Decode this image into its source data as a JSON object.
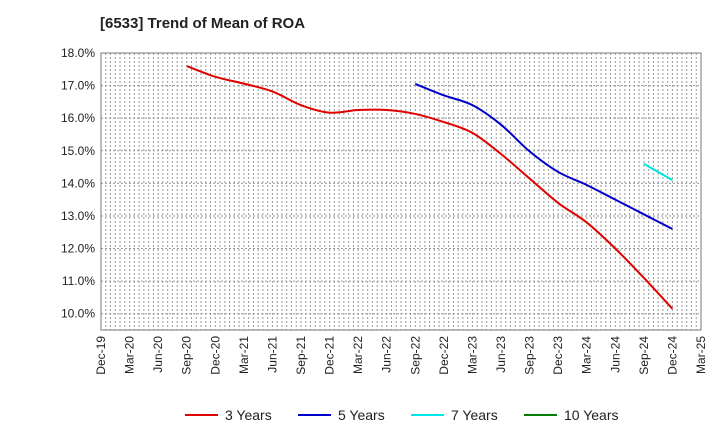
{
  "chart_data": {
    "type": "line",
    "title": "[6533]  Trend of Mean of ROA",
    "xlabel": "",
    "ylabel": "",
    "ylim": [
      9.5,
      18.0
    ],
    "y_ticks": [
      "10.0%",
      "11.0%",
      "12.0%",
      "13.0%",
      "14.0%",
      "15.0%",
      "16.0%",
      "17.0%",
      "18.0%"
    ],
    "y_tick_values": [
      10,
      11,
      12,
      13,
      14,
      15,
      16,
      17,
      18
    ],
    "categories": [
      "Dec-19",
      "Mar-20",
      "Jun-20",
      "Sep-20",
      "Dec-20",
      "Mar-21",
      "Jun-21",
      "Sep-21",
      "Dec-21",
      "Mar-22",
      "Jun-22",
      "Sep-22",
      "Dec-22",
      "Mar-23",
      "Jun-23",
      "Sep-23",
      "Dec-23",
      "Mar-24",
      "Jun-24",
      "Sep-24",
      "Dec-24",
      "Mar-25"
    ],
    "grid": true,
    "legend_position": "bottom",
    "series": [
      {
        "name": "3 Years",
        "color": "#e00000",
        "values": [
          null,
          null,
          null,
          17.6,
          17.27,
          17.06,
          16.82,
          16.4,
          16.17,
          16.25,
          16.25,
          16.13,
          15.88,
          15.55,
          14.9,
          14.15,
          13.4,
          12.8,
          12.0,
          11.1,
          10.15,
          null
        ]
      },
      {
        "name": "5 Years",
        "color": "#0000cc",
        "values": [
          null,
          null,
          null,
          null,
          null,
          null,
          null,
          null,
          null,
          null,
          null,
          17.05,
          16.7,
          16.4,
          15.8,
          14.98,
          14.35,
          13.95,
          13.5,
          13.05,
          12.6,
          null
        ]
      },
      {
        "name": "7 Years",
        "color": "#00e5e5",
        "values": [
          null,
          null,
          null,
          null,
          null,
          null,
          null,
          null,
          null,
          null,
          null,
          null,
          null,
          null,
          null,
          null,
          null,
          null,
          null,
          14.6,
          14.1,
          null
        ]
      },
      {
        "name": "10 Years",
        "color": "#008000",
        "values": [
          null,
          null,
          null,
          null,
          null,
          null,
          null,
          null,
          null,
          null,
          null,
          null,
          null,
          null,
          null,
          null,
          null,
          null,
          null,
          null,
          null,
          null
        ]
      }
    ]
  }
}
